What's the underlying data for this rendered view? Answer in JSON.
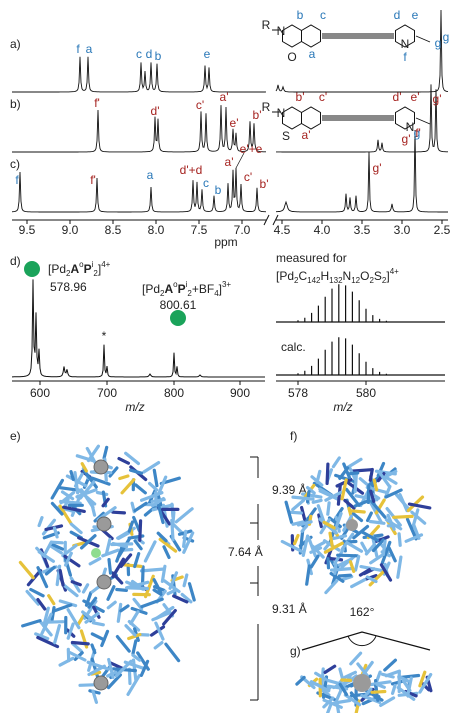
{
  "panels": {
    "labels": [
      "a)",
      "b)",
      "c)",
      "d)",
      "e)",
      "f)",
      "g)"
    ]
  },
  "nmr": {
    "a": {
      "peaks": [
        "f",
        "a",
        "c",
        "d",
        "b",
        "e",
        "g"
      ],
      "structure": [
        "R",
        "N",
        "O",
        "a",
        "b",
        "c",
        "d",
        "e",
        "f",
        "g",
        "N"
      ]
    },
    "b": {
      "peaks": [
        "f'",
        "d'",
        "c'",
        "a'",
        "e'",
        "b'",
        "g'"
      ],
      "structure": [
        "R",
        "N",
        "S",
        "a'",
        "b'",
        "c'",
        "d'",
        "e'",
        "f'",
        "g'",
        "N"
      ]
    },
    "c": {
      "peaks": [
        "f",
        "f'",
        "a",
        "d'+d",
        "c",
        "b",
        "a'",
        "e'+e",
        "c'",
        "b'",
        "g'",
        "g"
      ]
    },
    "ticks": [
      "9.5",
      "9.0",
      "8.5",
      "8.0",
      "7.5",
      "7.0",
      "4.5",
      "4.0",
      "3.5",
      "3.0",
      "2.5"
    ],
    "axis_label": "ppm"
  },
  "ms": {
    "formula_1": [
      "[Pd",
      "2",
      "A",
      "o",
      "P",
      "i",
      "2",
      "]",
      "4+"
    ],
    "value_1": "578.96",
    "formula_2": [
      "[Pd",
      "2",
      "A",
      "o",
      "P",
      "i",
      "2",
      "+BF",
      "4",
      "]",
      "3+"
    ],
    "value_2": "800.61",
    "impurity": "*",
    "ticks": [
      "600",
      "700",
      "800",
      "900"
    ],
    "axis_label": "m/z",
    "measured": "measured for",
    "formula_3": [
      "[Pd",
      "2",
      "C",
      "142",
      "H",
      "132",
      "N",
      "12",
      "O",
      "2",
      "S",
      "2",
      "]",
      "4+"
    ],
    "calc": "calc.",
    "inset_ticks": [
      "578",
      "580"
    ],
    "inset_axis_label": "m/z"
  },
  "structure": {
    "distances": [
      "9.39 Å",
      "7.64 Å",
      "9.31 Å"
    ],
    "angle": "162°"
  }
}
